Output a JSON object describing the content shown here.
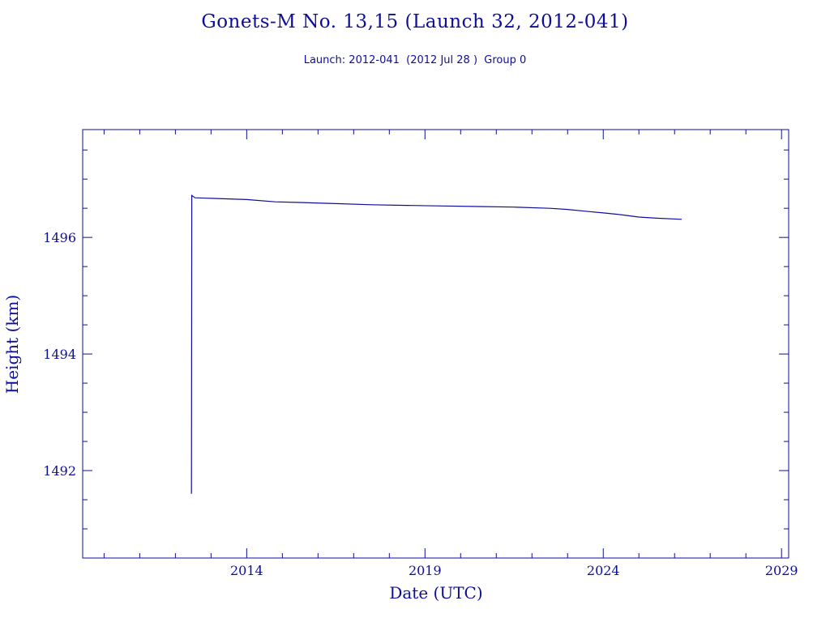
{
  "title": "Gonets-M No. 13,15 (Launch 32, 2012-041)",
  "subtitle": "Launch: 2012-041  (2012 Jul 28 )  Group 0",
  "colors": {
    "ink": "#0d0d9b",
    "background": "#ffffff"
  },
  "chart_data": {
    "type": "line",
    "xlabel": "Date (UTC)",
    "ylabel": "Height (km)",
    "xlim": [
      2009.4,
      2029.2
    ],
    "ylim": [
      1490.5,
      1497.85
    ],
    "x_ticks": [
      2014,
      2019,
      2024,
      2029
    ],
    "y_ticks": [
      1492,
      1494,
      1496
    ],
    "x_minor_step": 1,
    "y_minor_step": 0.5,
    "grid": false,
    "series": [
      {
        "x": [
          2012.45,
          2012.46,
          2012.55,
          2013.0,
          2014.0,
          2014.8,
          2015.5,
          2016.5,
          2017.5,
          2018.5,
          2019.5,
          2020.5,
          2021.5,
          2022.5,
          2023.0,
          2023.5,
          2024.0,
          2024.5,
          2025.0,
          2025.5,
          2026.2
        ],
        "y": [
          1491.6,
          1496.72,
          1496.68,
          1496.67,
          1496.65,
          1496.61,
          1496.6,
          1496.58,
          1496.56,
          1496.55,
          1496.54,
          1496.53,
          1496.52,
          1496.5,
          1496.48,
          1496.45,
          1496.42,
          1496.39,
          1496.35,
          1496.33,
          1496.31
        ]
      }
    ]
  }
}
